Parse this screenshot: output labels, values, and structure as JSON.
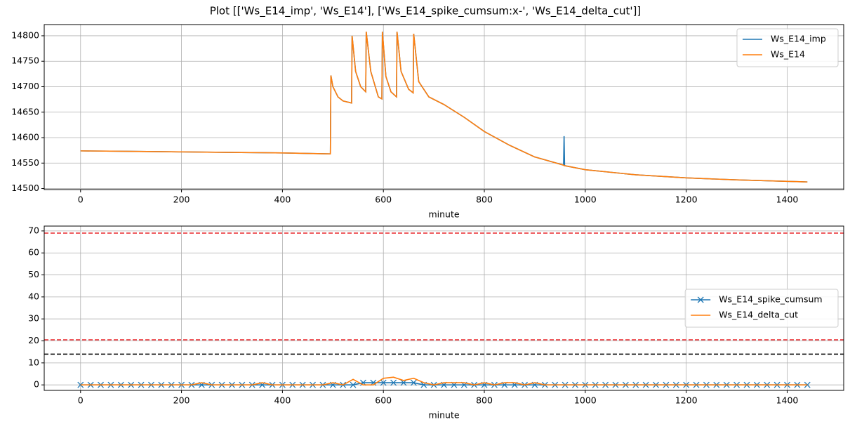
{
  "title": "Plot [['Ws_E14_imp', 'Ws_E14'], ['Ws_E14_spike_cumsum:x-', 'Ws_E14_delta_cut']]",
  "chart_data": [
    {
      "type": "line",
      "xlabel": "minute",
      "grid": true,
      "legend": "upper right",
      "xlim": [
        -72,
        1512
      ],
      "xticks": [
        0,
        200,
        400,
        600,
        800,
        1000,
        1200,
        1400
      ],
      "ylim": [
        14498,
        14822
      ],
      "yticks": [
        14500,
        14550,
        14600,
        14650,
        14700,
        14750,
        14800
      ],
      "x": [
        0,
        100,
        200,
        300,
        400,
        495,
        496,
        500,
        510,
        520,
        537,
        538,
        545,
        555,
        565,
        566,
        575,
        590,
        597,
        598,
        605,
        615,
        626,
        627,
        635,
        650,
        659,
        660,
        670,
        690,
        720,
        760,
        800,
        850,
        900,
        957,
        958,
        959,
        1000,
        1100,
        1200,
        1300,
        1440
      ],
      "series": [
        {
          "name": "Ws_E14_imp",
          "color": "#1f77b4",
          "values": [
            14574,
            14573,
            14572,
            14571,
            14570,
            14568,
            14722,
            14700,
            14680,
            14672,
            14668,
            14800,
            14730,
            14700,
            14690,
            14808,
            14730,
            14680,
            14676,
            14808,
            14720,
            14690,
            14680,
            14808,
            14730,
            14695,
            14688,
            14804,
            14710,
            14680,
            14665,
            14640,
            14612,
            14585,
            14562,
            14546,
            14603,
            14545,
            14537,
            14527,
            14521,
            14517,
            14513
          ]
        },
        {
          "name": "Ws_E14",
          "color": "#ff7f0e",
          "values": [
            14574,
            14573,
            14572,
            14571,
            14570,
            14568,
            14722,
            14700,
            14680,
            14672,
            14668,
            14800,
            14730,
            14700,
            14690,
            14808,
            14730,
            14680,
            14676,
            14808,
            14720,
            14690,
            14680,
            14808,
            14730,
            14695,
            14688,
            14804,
            14710,
            14680,
            14665,
            14640,
            14612,
            14585,
            14562,
            14546,
            14545,
            14545,
            14537,
            14527,
            14521,
            14517,
            14513
          ]
        }
      ]
    },
    {
      "type": "line",
      "xlabel": "minute",
      "grid": true,
      "legend": "center right",
      "xlim": [
        -72,
        1512
      ],
      "xticks": [
        0,
        200,
        400,
        600,
        800,
        1000,
        1200,
        1400
      ],
      "ylim": [
        -2.5,
        72.2
      ],
      "yticks": [
        0,
        10,
        20,
        30,
        40,
        50,
        60,
        70
      ],
      "hlines": [
        {
          "value": 69,
          "color": "#e8272a"
        },
        {
          "value": 20.5,
          "color": "#e8272a"
        },
        {
          "value": 14,
          "color": "#000000"
        }
      ],
      "x": [
        0,
        20,
        40,
        60,
        80,
        100,
        120,
        140,
        160,
        180,
        200,
        220,
        240,
        260,
        280,
        300,
        320,
        340,
        360,
        380,
        400,
        420,
        440,
        460,
        480,
        500,
        520,
        540,
        560,
        580,
        600,
        620,
        640,
        660,
        680,
        700,
        720,
        740,
        760,
        780,
        800,
        820,
        840,
        860,
        880,
        900,
        920,
        940,
        960,
        980,
        1000,
        1020,
        1040,
        1060,
        1080,
        1100,
        1120,
        1140,
        1160,
        1180,
        1200,
        1220,
        1240,
        1260,
        1280,
        1300,
        1320,
        1340,
        1360,
        1380,
        1400,
        1420,
        1440
      ],
      "series": [
        {
          "name": "Ws_E14_spike_cumsum",
          "color": "#1f77b4",
          "marker": "x",
          "values": [
            0,
            0,
            0,
            0,
            0,
            0,
            0,
            0,
            0,
            0,
            0,
            0,
            0,
            0,
            0,
            0,
            0,
            0,
            0,
            0,
            0,
            0,
            0,
            0,
            0,
            0,
            0,
            0,
            1,
            1,
            1,
            1,
            1,
            1,
            0,
            0,
            0,
            0,
            0,
            0,
            0,
            0,
            0,
            0,
            0,
            0,
            0,
            0,
            0,
            0,
            0,
            0,
            0,
            0,
            0,
            0,
            0,
            0,
            0,
            0,
            0,
            0,
            0,
            0,
            0,
            0,
            0,
            0,
            0,
            0,
            0,
            0,
            0
          ]
        },
        {
          "name": "Ws_E14_delta_cut",
          "color": "#ff7f0e",
          "values": [
            0,
            0,
            0,
            0,
            0,
            0,
            0,
            0,
            0,
            0,
            0,
            0,
            1,
            0,
            0,
            0,
            0,
            0,
            1,
            0,
            0,
            0,
            0,
            0,
            0,
            1,
            0,
            2.5,
            0,
            0,
            3,
            3.5,
            2,
            3,
            1,
            0,
            1,
            1,
            1,
            0,
            1,
            0,
            1,
            1,
            0,
            1,
            0,
            0,
            0,
            0,
            0,
            0,
            0,
            0,
            0,
            0,
            0,
            0,
            0,
            0,
            0,
            0,
            0,
            0,
            0,
            0,
            0,
            0,
            0,
            0,
            0,
            0,
            0
          ]
        }
      ]
    }
  ]
}
